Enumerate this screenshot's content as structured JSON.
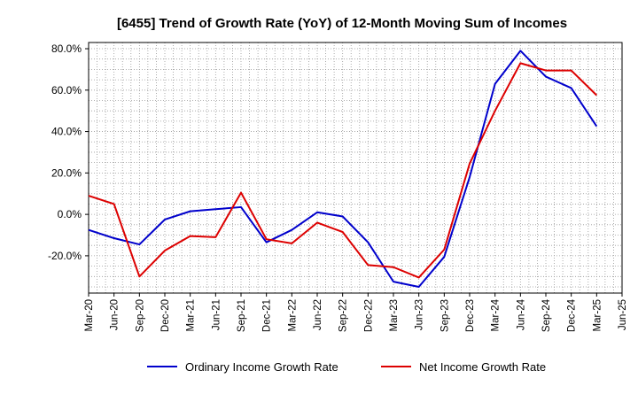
{
  "chart_data": {
    "type": "line",
    "title": "[6455]  Trend of Growth Rate (YoY) of 12-Month Moving Sum of Incomes",
    "xlabel": "",
    "ylabel": "",
    "ylim": [
      -38,
      83
    ],
    "y_ticks": [
      80,
      60,
      40,
      20,
      0,
      -20
    ],
    "y_tick_labels": [
      "80.0%",
      "60.0%",
      "40.0%",
      "20.0%",
      "0.0%",
      "-20.0%"
    ],
    "x_tick_labels": [
      "Mar-20",
      "Jun-20",
      "Sep-20",
      "Dec-20",
      "Mar-21",
      "Jun-21",
      "Sep-21",
      "Dec-21",
      "Mar-22",
      "Jun-22",
      "Sep-22",
      "Dec-22",
      "Mar-23",
      "Jun-23",
      "Sep-23",
      "Dec-23",
      "Mar-24",
      "Jun-24",
      "Sep-24",
      "Dec-24",
      "Mar-25",
      "Jun-25"
    ],
    "grid": true,
    "legend_position": "bottom",
    "series": [
      {
        "name": "Ordinary Income Growth Rate",
        "color": "#0000cc",
        "values": [
          -7.5,
          -11.5,
          -14.5,
          -2.5,
          1.5,
          2.5,
          3.5,
          -13.5,
          -7.5,
          1.0,
          -1.0,
          -13.5,
          -32.5,
          -35.0,
          -20.5,
          18.0,
          63.0,
          79.0,
          66.5,
          61.0,
          42.5
        ]
      },
      {
        "name": "Net Income Growth Rate",
        "color": "#dd0000",
        "values": [
          9.0,
          5.0,
          -30.0,
          -17.5,
          -10.5,
          -11.0,
          10.5,
          -12.0,
          -14.0,
          -4.0,
          -8.5,
          -24.5,
          -25.5,
          -30.5,
          -17.0,
          24.5,
          50.0,
          73.0,
          69.5,
          69.5,
          57.5
        ]
      }
    ]
  }
}
